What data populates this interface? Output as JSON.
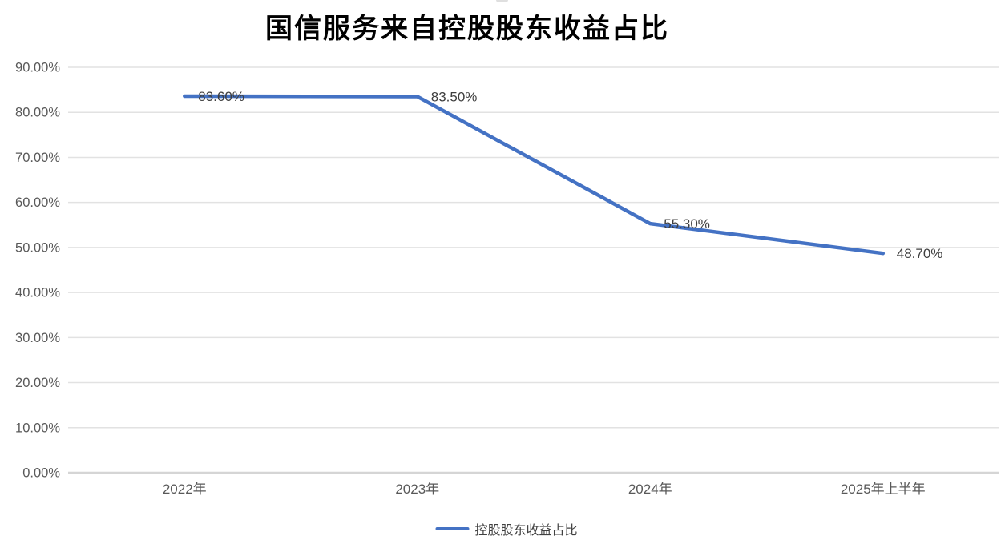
{
  "window": {
    "background": "#ffffff"
  },
  "chart_data": {
    "type": "line",
    "title": "国信服务来自控股股东收益占比",
    "categories": [
      "2022年",
      "2023年",
      "2024年",
      "2025年上半年"
    ],
    "series": [
      {
        "name": "控股股东收益占比",
        "values": [
          83.6,
          83.5,
          55.3,
          48.7
        ]
      }
    ],
    "data_labels": [
      "83.60%",
      "83.50%",
      "55.30%",
      "48.70%"
    ],
    "y_ticks": [
      "0.00%",
      "10.00%",
      "20.00%",
      "30.00%",
      "40.00%",
      "50.00%",
      "60.00%",
      "70.00%",
      "80.00%",
      "90.00%"
    ],
    "ylim": [
      0,
      90
    ],
    "grid": true,
    "legend": {
      "position": "bottom",
      "label": "控股股东收益占比"
    },
    "colors": {
      "line": "#4472C4",
      "gridline": "#E2E2E2",
      "baseline": "#D5D5D5",
      "tick_label": "#595959",
      "data_label": "#3F3F3F",
      "title": "#000000"
    }
  }
}
